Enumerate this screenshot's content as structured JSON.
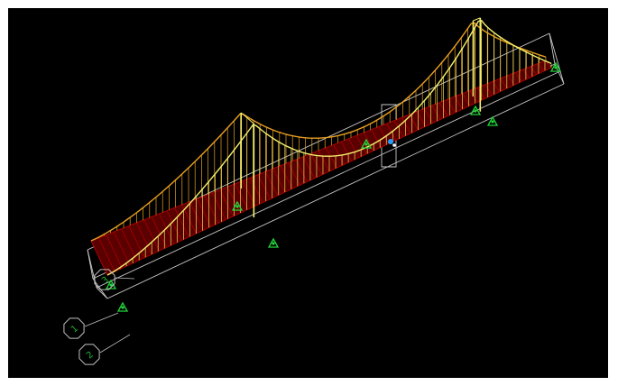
{
  "viewport": {
    "view_type": "3d-wireframe",
    "background_color": "#000000"
  },
  "colors": {
    "bounding_box": "#c8c8c8",
    "deck": "#a80000",
    "deck_fill": "#5a0000",
    "hangers_near": "#f0e060",
    "hangers_far": "#e8a020",
    "main_cable": "#f4f070",
    "support": "#22d43a",
    "axis_bubble": "#c0c0c0",
    "axis_text": "#20b030",
    "selected_node": "#20a0ff"
  },
  "supports": [
    {
      "name": "support-left-end"
    },
    {
      "name": "support-left-end-lower"
    },
    {
      "name": "support-left-tower-near"
    },
    {
      "name": "support-left-tower-far"
    },
    {
      "name": "support-right-tower-near"
    },
    {
      "name": "support-right-tower-far"
    },
    {
      "name": "support-right-end"
    },
    {
      "name": "support-mid-span"
    }
  ],
  "axis_bubbles": [
    {
      "label": "3",
      "icon": "axis-bubble"
    },
    {
      "label": "1",
      "icon": "axis-bubble"
    },
    {
      "label": "2",
      "icon": "axis-bubble"
    }
  ]
}
